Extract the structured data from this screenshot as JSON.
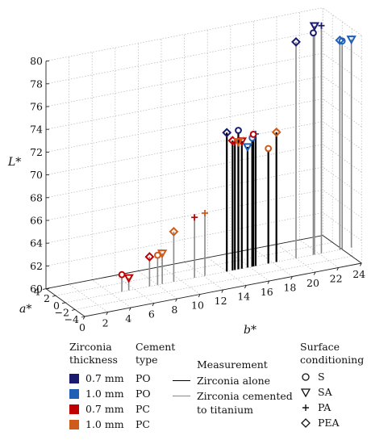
{
  "chart_data": {
    "type": "scatter",
    "subtype": "3d-stem",
    "xlabel": "b*",
    "ylabel": "a*",
    "zlabel": "L*",
    "xlim": [
      0,
      24
    ],
    "ylim": [
      -4,
      4
    ],
    "zlim": [
      60,
      80
    ],
    "x_ticks": [
      "0",
      "2",
      "4",
      "6",
      "8",
      "10",
      "12",
      "14",
      "16",
      "18",
      "20",
      "22",
      "24"
    ],
    "y_ticks": [
      "−4",
      "−2",
      "0",
      "2",
      "4"
    ],
    "z_ticks": [
      "60",
      "62",
      "64",
      "66",
      "68",
      "70",
      "72",
      "74",
      "76",
      "78",
      "80"
    ],
    "grid": true,
    "series": [
      {
        "name": "0.7 mm PO",
        "color": "#1a1a6e",
        "points": [
          {
            "x": 15.0,
            "y": 0,
            "z": 72.2,
            "marker": "S",
            "stem": "alone"
          },
          {
            "x": 14.0,
            "y": 0,
            "z": 72.2,
            "marker": "PEA",
            "stem": "alone"
          },
          {
            "x": 21.5,
            "y": 0,
            "z": 79.5,
            "marker": "S",
            "stem": "cemented"
          },
          {
            "x": 21.6,
            "y": 0,
            "z": 80.1,
            "marker": "SA",
            "stem": "cemented"
          },
          {
            "x": 22.2,
            "y": 0,
            "z": 80.0,
            "marker": "PA",
            "stem": "cemented"
          },
          {
            "x": 20.0,
            "y": 0,
            "z": 79.0,
            "marker": "PEA",
            "stem": "cemented"
          }
        ]
      },
      {
        "name": "1.0 mm PO",
        "color": "#1f5fb5",
        "points": [
          {
            "x": 16.2,
            "y": 0,
            "z": 71.3,
            "marker": "S",
            "stem": "alone"
          },
          {
            "x": 15.8,
            "y": 0,
            "z": 70.6,
            "marker": "SA",
            "stem": "alone"
          },
          {
            "x": 16.5,
            "y": 0,
            "z": 71.6,
            "marker": "PA",
            "stem": "alone"
          },
          {
            "x": 24.0,
            "y": 0,
            "z": 78.3,
            "marker": "S",
            "stem": "cemented"
          },
          {
            "x": 24.8,
            "y": 0,
            "z": 78.3,
            "marker": "SA",
            "stem": "cemented"
          },
          {
            "x": 23.8,
            "y": 0,
            "z": 78.4,
            "marker": "PEA",
            "stem": "cemented"
          }
        ]
      },
      {
        "name": "0.7 mm PC",
        "color": "#c00000",
        "points": [
          {
            "x": 16.3,
            "y": 0,
            "z": 71.6,
            "marker": "S",
            "stem": "alone"
          },
          {
            "x": 15.3,
            "y": 0,
            "z": 71.2,
            "marker": "SA",
            "stem": "alone"
          },
          {
            "x": 14.7,
            "y": 0,
            "z": 71.2,
            "marker": "PA",
            "stem": "alone"
          },
          {
            "x": 14.5,
            "y": 0,
            "z": 71.4,
            "marker": "PEA",
            "stem": "alone"
          },
          {
            "x": 4.9,
            "y": 0,
            "z": 61.5,
            "marker": "S",
            "stem": "cemented"
          },
          {
            "x": 5.5,
            "y": 0,
            "z": 61.1,
            "marker": "SA",
            "stem": "cemented"
          },
          {
            "x": 11.2,
            "y": 0,
            "z": 65.3,
            "marker": "PA",
            "stem": "cemented"
          },
          {
            "x": 7.3,
            "y": 0,
            "z": 62.6,
            "marker": "PEA",
            "stem": "cemented"
          }
        ]
      },
      {
        "name": "1.0 mm PC",
        "color": "#cf5b1a",
        "points": [
          {
            "x": 17.6,
            "y": 0,
            "z": 70.1,
            "marker": "S",
            "stem": "alone"
          },
          {
            "x": 15.0,
            "y": 0,
            "z": 71.2,
            "marker": "SA",
            "stem": "alone"
          },
          {
            "x": 18.3,
            "y": 0,
            "z": 71.4,
            "marker": "PEA",
            "stem": "alone"
          },
          {
            "x": 8.0,
            "y": 0,
            "z": 62.6,
            "marker": "S",
            "stem": "cemented"
          },
          {
            "x": 8.4,
            "y": 0,
            "z": 62.7,
            "marker": "SA",
            "stem": "cemented"
          },
          {
            "x": 12.1,
            "y": 0,
            "z": 65.5,
            "marker": "PA",
            "stem": "cemented"
          },
          {
            "x": 9.4,
            "y": 0,
            "z": 64.4,
            "marker": "PEA",
            "stem": "cemented"
          }
        ]
      }
    ]
  },
  "legend": {
    "zirconia_header": [
      "Zirconia",
      "thickness"
    ],
    "cement_header": [
      "Cement",
      "type"
    ],
    "groups": [
      {
        "thickness": "0.7 mm",
        "cement": "PO",
        "color": "#1a1a6e"
      },
      {
        "thickness": "1.0 mm",
        "cement": "PO",
        "color": "#1f5fb5"
      },
      {
        "thickness": "0.7 mm",
        "cement": "PC",
        "color": "#c00000"
      },
      {
        "thickness": "1.0 mm",
        "cement": "PC",
        "color": "#cf5b1a"
      }
    ],
    "measurement_header": "Measurement",
    "measurement_items": [
      {
        "label": "Zirconia alone",
        "color": "#000000"
      },
      {
        "label": "Zirconia cemented",
        "label2": "to titanium",
        "color": "#888888"
      }
    ],
    "surface_header": [
      "Surface",
      "conditioning"
    ],
    "surface_items": [
      {
        "label": "S",
        "marker": "circle"
      },
      {
        "label": "SA",
        "marker": "triangle-down"
      },
      {
        "label": "PA",
        "marker": "plus"
      },
      {
        "label": "PEA",
        "marker": "diamond"
      }
    ]
  }
}
